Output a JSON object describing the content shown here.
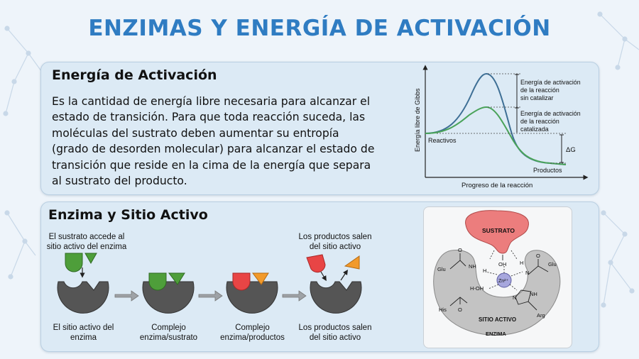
{
  "title": "ENZIMAS Y ENERGÍA DE ACTIVACIÓN",
  "activation": {
    "heading": "Energía de Activación",
    "lines": [
      "Es la cantidad de energía libre necesaria para alcanzar el",
      "estado de transición. Para que toda reacción suceda, las",
      "moléculas del sustrato deben aumentar su entropía",
      "(grado de desorden molecular) para alcanzar el estado de",
      "transición que reside en la cima de la energía que separa",
      "al sustrato del producto."
    ]
  },
  "graph": {
    "ylabel": "Energía libre de Gibbs",
    "xlabel": "Progreso de la reacción",
    "reactants": "Reactivos",
    "products": "Productos",
    "uncatalyzed": [
      "Energía de activación",
      "de la reacción",
      "sin catalizar"
    ],
    "catalyzed": [
      "Energía de activación",
      "de la reacción",
      "catalizada"
    ],
    "delta_g": "ΔG",
    "colors": {
      "uncatalyzed": "#3e6f95",
      "catalyzed": "#4aa35a"
    }
  },
  "active_site": {
    "heading": "Enzima y Sitio Activo",
    "top_labels": {
      "substrate_enters": [
        "El sustrato accede al",
        "sitio activo del enzima"
      ],
      "products_leave": [
        "Los productos salen",
        "del sitio activo"
      ]
    },
    "steps": [
      {
        "label": [
          "El sitio activo del",
          "enzima"
        ]
      },
      {
        "label": [
          "Complejo",
          "enzima/sustrato"
        ]
      },
      {
        "label": [
          "Complejo",
          "enzima/productos"
        ]
      },
      {
        "label": [
          "Los productos salen",
          "del sitio activo"
        ]
      }
    ],
    "colors": {
      "enzyme": "#555555",
      "substrate": "#4e9e3a",
      "product_red": "#e84545",
      "product_orange": "#f29a2b"
    }
  },
  "inset": {
    "substrate": "SUSTRATO",
    "site": "SITIO ACTIVO",
    "enzyme": "ENZIMA",
    "metal": "Zn²⁺",
    "residues": {
      "glu_left": "Glu",
      "glu_right": "Glu",
      "his": "His",
      "arg": "Arg"
    },
    "groups": {
      "oh_top": "OH",
      "nh_left": "NH",
      "h_left": "H",
      "h_right": "H",
      "n_right": "N",
      "ho": "H-OH",
      "nh_his": "NH",
      "n_his": "N",
      "o_left": "O",
      "o_right": "O",
      "o_his": "O"
    }
  }
}
